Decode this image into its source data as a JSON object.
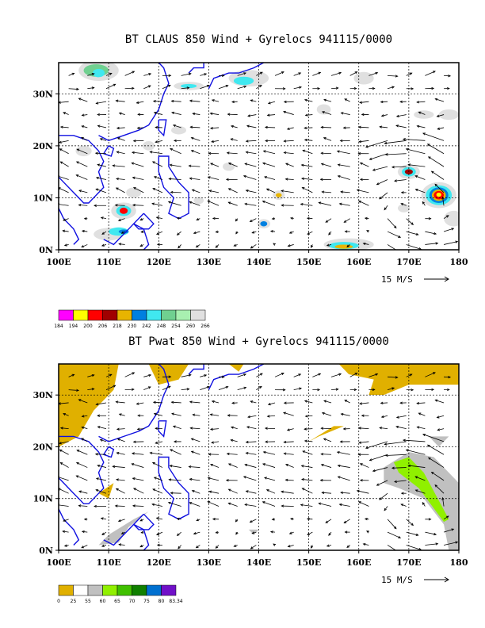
{
  "chart_data": [
    {
      "type": "map",
      "title": "BT CLAUS 850 Wind + Gyrelocs 941115/0000",
      "x_ticks": [
        "100E",
        "110E",
        "120E",
        "130E",
        "140E",
        "150E",
        "160E",
        "170E",
        "180"
      ],
      "y_ticks": [
        "0N",
        "10N",
        "20N",
        "30N"
      ],
      "lon_range": [
        100,
        180
      ],
      "lat_range": [
        0,
        36
      ],
      "grid": "dashed",
      "vector_scale_label": "15 M/S",
      "colorbar": {
        "labels": [
          "184",
          "194",
          "200",
          "206",
          "218",
          "230",
          "242",
          "248",
          "254",
          "260",
          "266"
        ],
        "colors": [
          "#ff00ff",
          "#ffff00",
          "#ff0000",
          "#a00000",
          "#e8b400",
          "#0080e0",
          "#40e8f0",
          "#70d090",
          "#a8f0b0",
          "#e0e0e0"
        ]
      }
    },
    {
      "type": "map",
      "title": "BT Pwat 850 Wind + Gyrelocs 941115/0000",
      "x_ticks": [
        "100E",
        "110E",
        "120E",
        "130E",
        "140E",
        "150E",
        "160E",
        "170E",
        "180"
      ],
      "y_ticks": [
        "0N",
        "10N",
        "20N",
        "30N"
      ],
      "lon_range": [
        100,
        180
      ],
      "lat_range": [
        0,
        36
      ],
      "grid": "dashed",
      "vector_scale_label": "15 M/S",
      "colorbar": {
        "labels": [
          "0",
          "25",
          "55",
          "60",
          "65",
          "70",
          "75",
          "80",
          "83.34"
        ],
        "colors": [
          "#e0b000",
          "#ffffff",
          "#c0c0c0",
          "#90f000",
          "#40c000",
          "#108000",
          "#0070d0",
          "#7010c8"
        ]
      }
    }
  ]
}
